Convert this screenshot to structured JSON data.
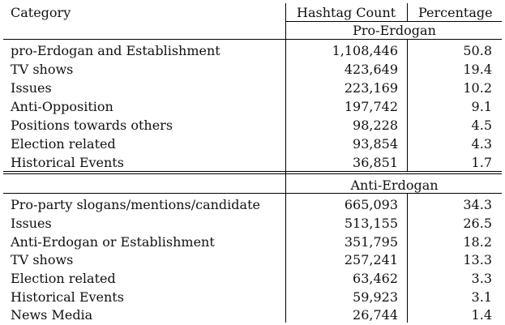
{
  "header": {
    "category": "Category",
    "hashtag_count": "Hashtag Count",
    "percentage": "Percentage"
  },
  "groups": [
    {
      "title": "Pro-Erdogan",
      "rows": [
        {
          "category": "pro-Erdogan and Establishment",
          "count": "1,108,446",
          "pct": "50.8"
        },
        {
          "category": "TV shows",
          "count": "423,649",
          "pct": "19.4"
        },
        {
          "category": "Issues",
          "count": "223,169",
          "pct": "10.2"
        },
        {
          "category": "Anti-Opposition",
          "count": "197,742",
          "pct": "9.1"
        },
        {
          "category": "Positions towards others",
          "count": "98,228",
          "pct": "4.5"
        },
        {
          "category": "Election related",
          "count": "93,854",
          "pct": "4.3"
        },
        {
          "category": "Historical Events",
          "count": "36,851",
          "pct": "1.7"
        }
      ]
    },
    {
      "title": "Anti-Erdogan",
      "rows": [
        {
          "category": "Pro-party slogans/mentions/candidate",
          "count": "665,093",
          "pct": "34.3"
        },
        {
          "category": "Issues",
          "count": "513,155",
          "pct": "26.5"
        },
        {
          "category": "Anti-Erdogan or Establishment",
          "count": "351,795",
          "pct": "18.2"
        },
        {
          "category": "TV shows",
          "count": "257,241",
          "pct": "13.3"
        },
        {
          "category": "Election related",
          "count": "63,462",
          "pct": "3.3"
        },
        {
          "category": "Historical Events",
          "count": "59,923",
          "pct": "3.1"
        },
        {
          "category": "News Media",
          "count": "26,744",
          "pct": "1.4"
        }
      ]
    }
  ]
}
